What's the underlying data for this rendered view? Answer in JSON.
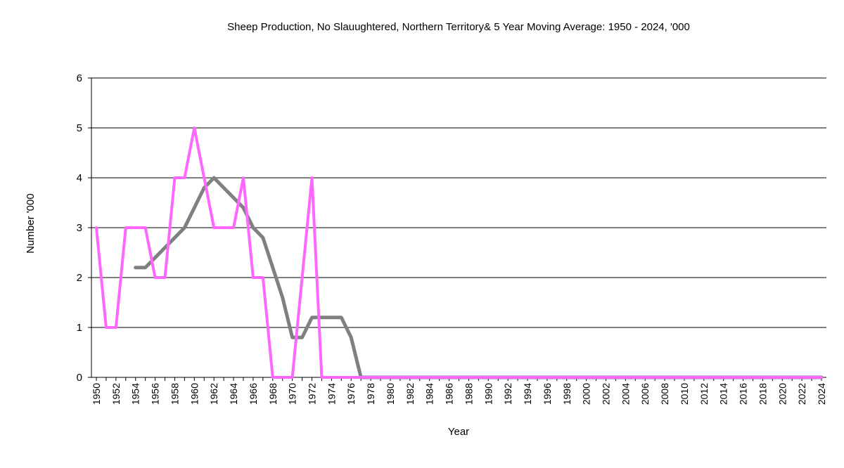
{
  "chart_data": {
    "type": "line",
    "title": "Sheep Production,  No Slauughtered, Northern Territory& 5 Year Moving Average: 1950 - 2024, '000",
    "xlabel": "Year",
    "ylabel": "Number '000",
    "ylim": [
      0,
      6
    ],
    "yticks": [
      0,
      1,
      2,
      3,
      4,
      5,
      6
    ],
    "xlim": [
      1950,
      2024
    ],
    "xtick_step": 2,
    "grid": true,
    "legend": "none",
    "series": [
      {
        "color": "#ff66ff",
        "x": [
          1950,
          1951,
          1952,
          1953,
          1954,
          1955,
          1956,
          1957,
          1958,
          1959,
          1960,
          1961,
          1962,
          1963,
          1964,
          1965,
          1966,
          1967,
          1968,
          1969,
          1970,
          1971,
          1972,
          1973,
          1974,
          1975,
          1976,
          1977,
          1978,
          1979,
          1980,
          1981,
          1982,
          1983,
          1984,
          1985,
          1986,
          1987,
          1988,
          1989,
          1990,
          1991,
          1992,
          1993,
          1994,
          1995,
          1996,
          1997,
          1998,
          1999,
          2000,
          2001,
          2002,
          2003,
          2004,
          2005,
          2006,
          2007,
          2008,
          2009,
          2010,
          2011,
          2012,
          2013,
          2014,
          2015,
          2016,
          2017,
          2018,
          2019,
          2020,
          2021,
          2022,
          2023,
          2024
        ],
        "values": [
          3,
          1,
          1,
          3,
          3,
          3,
          2,
          2,
          4,
          4,
          5,
          4,
          3,
          3,
          3,
          4,
          2,
          2,
          0,
          0,
          0,
          2,
          4,
          0,
          0,
          0,
          0,
          0,
          0,
          0,
          0,
          0,
          0,
          0,
          0,
          0,
          0,
          0,
          0,
          0,
          0,
          0,
          0,
          0,
          0,
          0,
          0,
          0,
          0,
          0,
          0,
          0,
          0,
          0,
          0,
          0,
          0,
          0,
          0,
          0,
          0,
          0,
          0,
          0,
          0,
          0,
          0,
          0,
          0,
          0,
          0,
          0,
          0,
          0,
          0
        ]
      },
      {
        "color": "#808080",
        "x": [
          1954,
          1955,
          1956,
          1957,
          1958,
          1959,
          1960,
          1961,
          1962,
          1963,
          1964,
          1965,
          1966,
          1967,
          1968,
          1969,
          1970,
          1971,
          1972,
          1973,
          1974,
          1975,
          1976,
          1977,
          1978,
          1979,
          1980,
          1981,
          1982,
          1983,
          1984,
          1985,
          1986,
          1987,
          1988,
          1989,
          1990,
          1991,
          1992,
          1993,
          1994,
          1995,
          1996,
          1997,
          1998,
          1999,
          2000,
          2001,
          2002,
          2003,
          2004,
          2005,
          2006,
          2007,
          2008,
          2009,
          2010,
          2011,
          2012,
          2013,
          2014,
          2015,
          2016,
          2017,
          2018,
          2019,
          2020,
          2021,
          2022,
          2023,
          2024
        ],
        "values": [
          2.2,
          2.2,
          2.4,
          2.6,
          2.8,
          3.0,
          3.4,
          3.8,
          4.0,
          3.8,
          3.6,
          3.4,
          3.0,
          2.8,
          2.2,
          1.6,
          0.8,
          0.8,
          1.2,
          1.2,
          1.2,
          1.2,
          0.8,
          0,
          0,
          0,
          0,
          0,
          0,
          0,
          0,
          0,
          0,
          0,
          0,
          0,
          0,
          0,
          0,
          0,
          0,
          0,
          0,
          0,
          0,
          0,
          0,
          0,
          0,
          0,
          0,
          0,
          0,
          0,
          0,
          0,
          0,
          0,
          0,
          0,
          0,
          0,
          0,
          0,
          0,
          0,
          0,
          0,
          0,
          0,
          0
        ]
      }
    ]
  }
}
